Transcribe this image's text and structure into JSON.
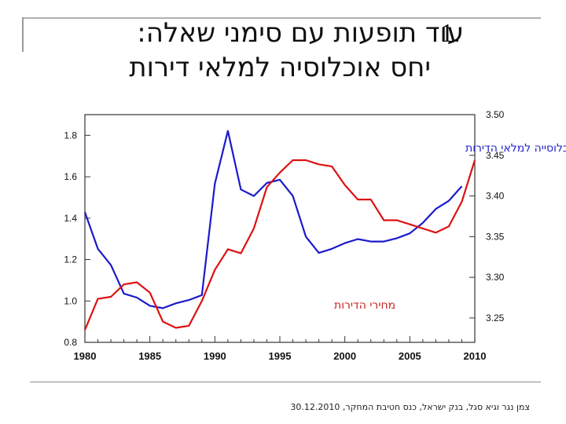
{
  "slide": {
    "number": "1.",
    "title_line1": "עוד תופעות עם סימני שאלה:",
    "title_line2": "יחס אוכלוסיה למלאי דירות",
    "footer": "צמן נגר וגיא סגל, בנק ישראל, כנס חטיבת המחקר, 30.12.2010"
  },
  "chart_data": {
    "type": "line",
    "x": [
      1980,
      1981,
      1982,
      1983,
      1984,
      1985,
      1986,
      1987,
      1988,
      1989,
      1990,
      1991,
      1992,
      1993,
      1994,
      1995,
      1996,
      1997,
      1998,
      1999,
      2000,
      2001,
      2002,
      2003,
      2004,
      2005,
      2006,
      2007,
      2008,
      2009,
      2010
    ],
    "xlim": [
      1980,
      2010
    ],
    "xticks": [
      "1980",
      "1985",
      "1990",
      "1995",
      "2000",
      "2005",
      "2010"
    ],
    "series": [
      {
        "name": "יחס האוכלוסייה למלאי הדירות",
        "axis": "right",
        "color": "#1a1acc",
        "x": [
          1980,
          1981,
          1982,
          1983,
          1984,
          1985,
          1986,
          1987,
          1988,
          1989,
          1990,
          1991,
          1992,
          1993,
          1994,
          1995,
          1996,
          1997,
          1998,
          1999,
          2000,
          2001,
          2002,
          2003,
          2004,
          2005,
          2006,
          2007,
          2008,
          2009
        ],
        "values": [
          3.38,
          3.335,
          3.315,
          3.28,
          3.275,
          3.265,
          3.262,
          3.268,
          3.272,
          3.278,
          3.415,
          3.48,
          3.408,
          3.4,
          3.416,
          3.42,
          3.4,
          3.35,
          3.33,
          3.335,
          3.342,
          3.347,
          3.344,
          3.344,
          3.348,
          3.354,
          3.367,
          3.384,
          3.394,
          3.412
        ]
      },
      {
        "name": "מחירי הדירות",
        "axis": "left",
        "color": "#dd1111",
        "x": [
          1980,
          1981,
          1982,
          1983,
          1984,
          1985,
          1986,
          1987,
          1988,
          1989,
          1990,
          1991,
          1992,
          1993,
          1994,
          1995,
          1996,
          1997,
          1998,
          1999,
          2000,
          2001,
          2002,
          2003,
          2004,
          2005,
          2006,
          2007,
          2008,
          2009,
          2010
        ],
        "values": [
          0.86,
          1.01,
          1.02,
          1.08,
          1.09,
          1.04,
          0.9,
          0.87,
          0.88,
          1.0,
          1.15,
          1.25,
          1.23,
          1.35,
          1.55,
          1.62,
          1.68,
          1.68,
          1.66,
          1.65,
          1.56,
          1.49,
          1.49,
          1.39,
          1.39,
          1.37,
          1.35,
          1.33,
          1.36,
          1.48,
          1.68
        ]
      }
    ],
    "y_left": {
      "ylim": [
        0.8,
        1.9
      ],
      "ticks": [
        "0.8",
        "1.0",
        "1.2",
        "1.4",
        "1.6",
        "1.8"
      ]
    },
    "y_right": {
      "ylim": [
        3.22,
        3.5
      ],
      "ticks": [
        "3.25",
        "3.30",
        "3.35",
        "3.40",
        "3.45",
        "3.50"
      ]
    },
    "grid": false
  }
}
